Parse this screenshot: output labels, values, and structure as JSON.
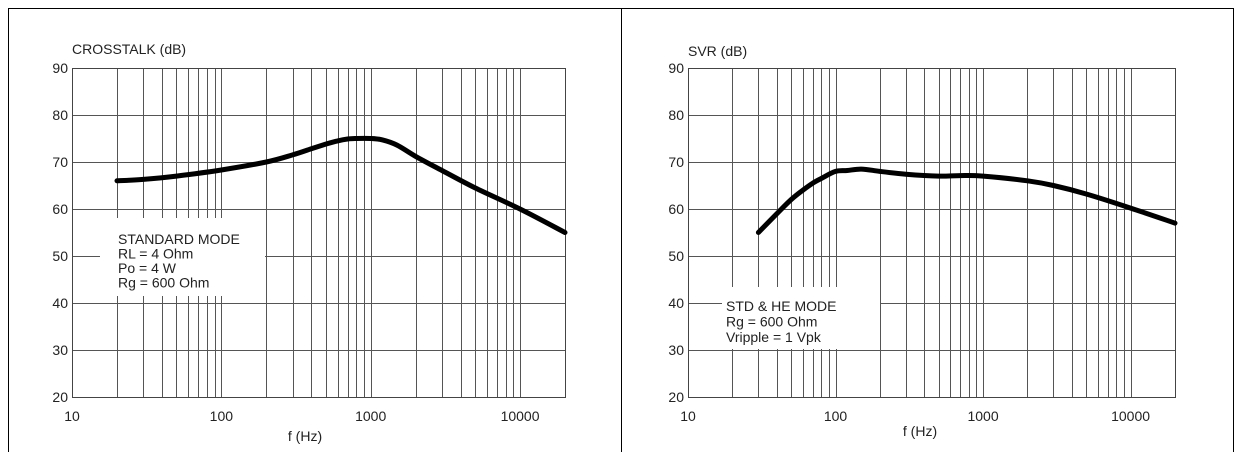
{
  "chart_data": [
    {
      "type": "line",
      "ylabel": "CROSSTALK (dB)",
      "xlabel": "f (Hz)",
      "x_scale": "log",
      "xlim": [
        10,
        20000
      ],
      "ylim": [
        20,
        90
      ],
      "x_ticks": [
        10,
        100,
        1000,
        10000
      ],
      "x_tick_labels": [
        "10",
        "100",
        "1000",
        "10000"
      ],
      "y_ticks": [
        20,
        30,
        40,
        50,
        60,
        70,
        80,
        90
      ],
      "y_tick_labels": [
        "20",
        "30",
        "40",
        "50",
        "60",
        "70",
        "80",
        "90"
      ],
      "grid": true,
      "annotation_lines": [
        "STANDARD MODE",
        "RL = 4 Ohm",
        "Po = 4 W",
        "Rg = 600 Ohm"
      ],
      "series": [
        {
          "x": [
            20,
            30,
            50,
            100,
            200,
            300,
            400,
            500,
            600,
            700,
            800,
            1000,
            1200,
            1500,
            2000,
            3000,
            5000,
            10000,
            20000
          ],
          "y": [
            66,
            66.3,
            67,
            68.3,
            70,
            71.5,
            72.8,
            73.8,
            74.5,
            74.9,
            75,
            75,
            74.7,
            73.6,
            71.2,
            68.2,
            64.5,
            60,
            55
          ]
        }
      ]
    },
    {
      "type": "line",
      "ylabel": "SVR (dB)",
      "xlabel": "f (Hz)",
      "x_scale": "log",
      "xlim": [
        10,
        20000
      ],
      "ylim": [
        20,
        90
      ],
      "x_ticks": [
        10,
        100,
        1000,
        10000
      ],
      "x_tick_labels": [
        "10",
        "100",
        "1000",
        "10000"
      ],
      "y_ticks": [
        20,
        30,
        40,
        50,
        60,
        70,
        80,
        90
      ],
      "y_tick_labels": [
        "20",
        "30",
        "40",
        "50",
        "60",
        "70",
        "80",
        "90"
      ],
      "grid": true,
      "annotation_lines": [
        "STD & HE MODE",
        "Rg = 600 Ohm",
        "Vripple = 1 Vpk"
      ],
      "series": [
        {
          "x": [
            30,
            40,
            50,
            60,
            70,
            80,
            100,
            120,
            150,
            200,
            300,
            500,
            700,
            1000,
            2000,
            3000,
            5000,
            10000,
            20000
          ],
          "y": [
            55,
            59,
            62,
            64,
            65.5,
            66.5,
            68,
            68.2,
            68.5,
            68,
            67.4,
            67,
            67.1,
            67,
            66,
            65,
            63.2,
            60.2,
            57
          ]
        }
      ]
    }
  ]
}
